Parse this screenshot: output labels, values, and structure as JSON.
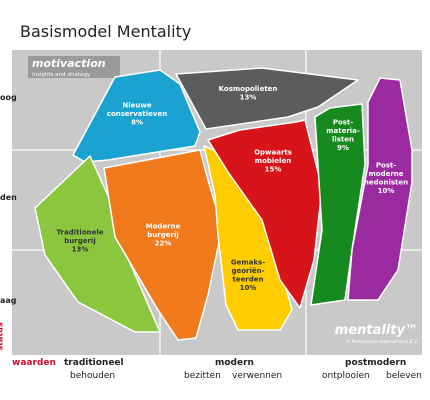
{
  "title": "Basismodel Mentality",
  "logo": {
    "name": "motivaction",
    "tagline": "insights and strategy"
  },
  "brand": {
    "name": "mentality™",
    "copyright": "© Motivaction International B.V."
  },
  "status_levels": [
    "oog",
    "den",
    "aag"
  ],
  "status_axis_label": "status",
  "values_axis_label": "waarden",
  "value_groups": [
    {
      "name": "traditioneel",
      "sub": [
        "behouden"
      ]
    },
    {
      "name": "modern",
      "sub": [
        "bezitten",
        "verwennen"
      ]
    },
    {
      "name": "postmodern",
      "sub": [
        "ontplooien",
        "beleven"
      ]
    }
  ],
  "segments": [
    {
      "name": "Nieuwe conservatieven",
      "lines": [
        "Nieuwe",
        "conservatieven"
      ],
      "pct": "8%",
      "color": "#1aa3d1"
    },
    {
      "name": "Kosmopolieten",
      "lines": [
        "Kosmopolieten"
      ],
      "pct": "13%",
      "color": "#5c5c5c"
    },
    {
      "name": "Traditionele burgerij",
      "lines": [
        "Traditionele",
        "burgerij"
      ],
      "pct": "13%",
      "color": "#8cc63f"
    },
    {
      "name": "Moderne burgerij",
      "lines": [
        "Moderne",
        "burgerij"
      ],
      "pct": "22%",
      "color": "#f07a1c"
    },
    {
      "name": "Gemaksgeoriënteerden",
      "lines": [
        "Gemaks-",
        "georiën-",
        "teerden"
      ],
      "pct": "10%",
      "color": "#ffcc00"
    },
    {
      "name": "Opwaarts mobielen",
      "lines": [
        "Opwaarts",
        "mobielen"
      ],
      "pct": "15%",
      "color": "#d7141a"
    },
    {
      "name": "Postmaterialisten",
      "lines": [
        "Post-",
        "materia-",
        "listen"
      ],
      "pct": "9%",
      "color": "#168a1f"
    },
    {
      "name": "Postmoderne hedonisten",
      "lines": [
        "Post-",
        "moderne",
        "hedonisten"
      ],
      "pct": "10%",
      "color": "#9b2aa0"
    }
  ]
}
